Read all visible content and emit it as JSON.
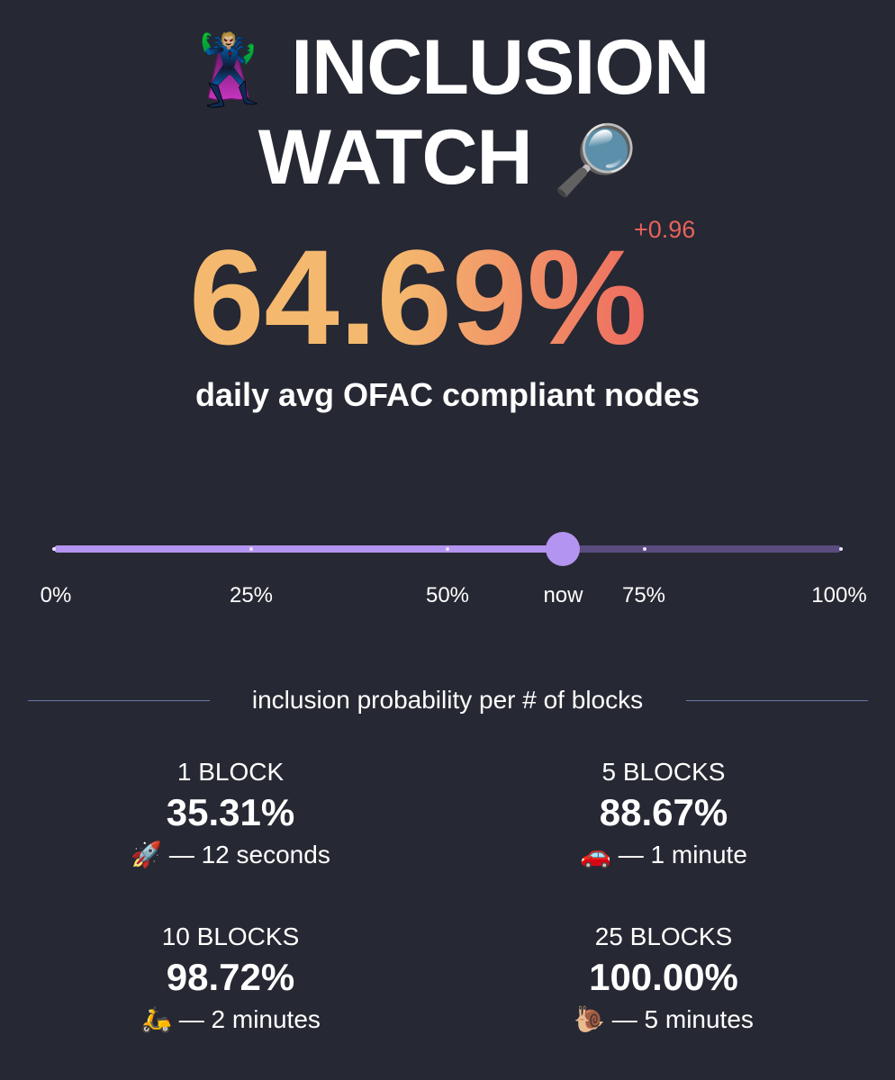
{
  "header": {
    "emoji_hero": "🦹🏼",
    "title_line1": "INCLUSION",
    "title_line2": "WATCH",
    "emoji_search": "🔎"
  },
  "metric": {
    "value": "64.69%",
    "delta": "+0.96",
    "subtitle": "daily avg OFAC compliant nodes"
  },
  "slider": {
    "value_fraction": 0.647,
    "ticks": [
      "0%",
      "25%",
      "50%",
      "75%",
      "100%"
    ],
    "now_label": "now"
  },
  "section_title": "inclusion probability per # of blocks",
  "cards": [
    {
      "label": "1 BLOCK",
      "value": "35.31%",
      "emoji": "🚀",
      "eta": "— 12 seconds"
    },
    {
      "label": "5 BLOCKS",
      "value": "88.67%",
      "emoji": "🚗",
      "eta": "— 1 minute"
    },
    {
      "label": "10 BLOCKS",
      "value": "98.72%",
      "emoji": "🛵",
      "eta": "— 2 minutes"
    },
    {
      "label": "25 BLOCKS",
      "value": "100.00%",
      "emoji": "🐌",
      "eta": "— 5 minutes"
    }
  ],
  "colors": {
    "background": "#262833",
    "accent": "#b394f0",
    "delta": "#e8625c"
  }
}
